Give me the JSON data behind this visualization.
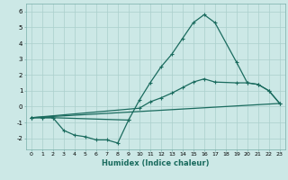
{
  "xlabel": "Humidex (Indice chaleur)",
  "background_color": "#cce8e6",
  "grid_color": "#aacfcc",
  "line_color": "#1a6b5e",
  "series1": {
    "x": [
      0,
      1,
      2,
      3,
      4,
      5,
      6,
      7,
      8,
      9
    ],
    "y": [
      -0.7,
      -0.7,
      -0.7,
      -1.5,
      -1.8,
      -1.9,
      -2.1,
      -2.1,
      -2.3,
      -0.85
    ]
  },
  "series2": {
    "x": [
      0,
      1,
      2,
      9,
      10,
      11,
      12,
      13,
      14,
      15,
      16,
      17,
      19,
      20,
      21,
      22,
      23
    ],
    "y": [
      -0.7,
      -0.7,
      -0.7,
      -0.85,
      0.4,
      1.5,
      2.5,
      3.3,
      4.3,
      5.3,
      5.8,
      5.3,
      2.8,
      1.5,
      1.4,
      1.0,
      0.2
    ]
  },
  "series3": {
    "x": [
      0,
      10,
      11,
      12,
      13,
      14,
      15,
      16,
      17,
      19,
      20,
      21,
      22,
      23
    ],
    "y": [
      -0.7,
      -0.1,
      0.3,
      0.55,
      0.85,
      1.2,
      1.55,
      1.75,
      1.55,
      1.5,
      1.5,
      1.4,
      1.0,
      0.2
    ]
  },
  "series4": {
    "x": [
      0,
      23
    ],
    "y": [
      -0.7,
      0.2
    ]
  },
  "ylim": [
    -2.7,
    6.5
  ],
  "xlim": [
    -0.5,
    23.5
  ],
  "yticks": [
    -2,
    -1,
    0,
    1,
    2,
    3,
    4,
    5,
    6
  ],
  "xticks": [
    0,
    1,
    2,
    3,
    4,
    5,
    6,
    7,
    8,
    9,
    10,
    11,
    12,
    13,
    14,
    15,
    16,
    17,
    18,
    19,
    20,
    21,
    22,
    23
  ]
}
